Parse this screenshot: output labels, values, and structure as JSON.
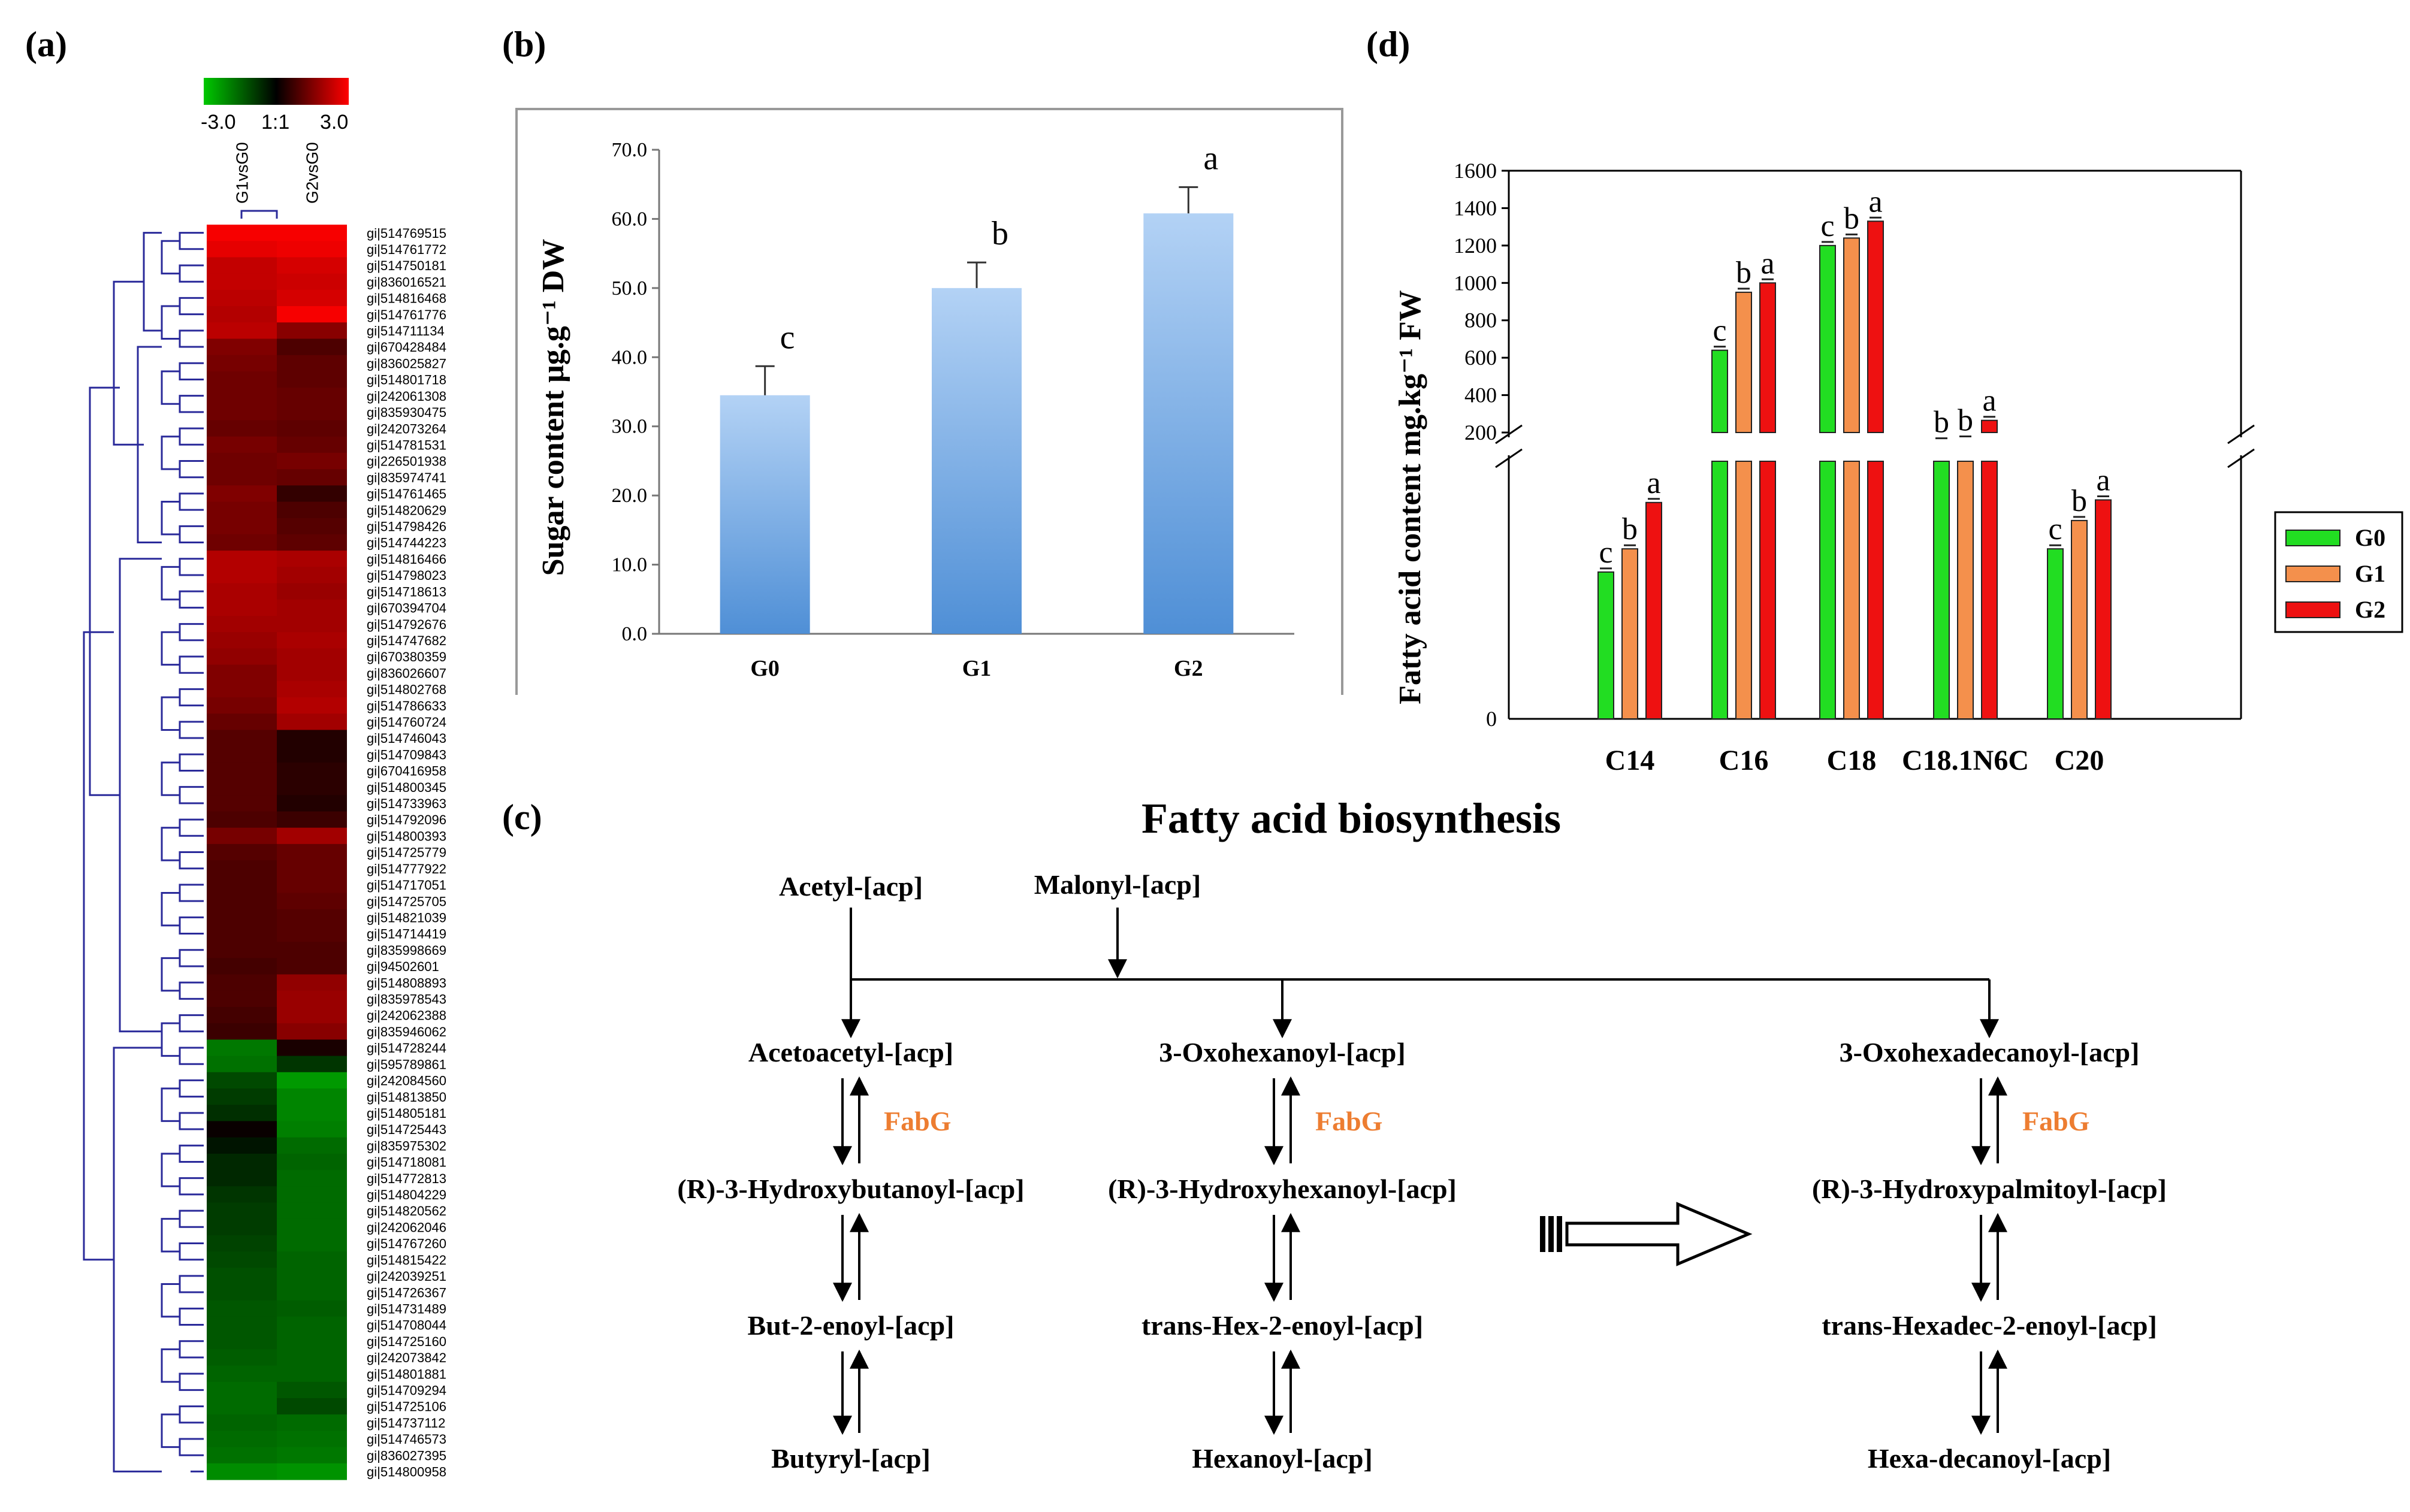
{
  "panel_labels": {
    "a": "(a)",
    "b": "(b)",
    "c": "(c)",
    "d": "(d)"
  },
  "heatmap": {
    "scale": {
      "min": "-3.0",
      "mid": "1:1",
      "max": "3.0"
    },
    "colors": {
      "low": "#00c800",
      "mid": "#000000",
      "high": "#ff0000"
    },
    "columns": [
      "G1vsG0",
      "G2vsG0"
    ],
    "genes": [
      "gi|514769515",
      "gi|514761772",
      "gi|514750181",
      "gi|836016521",
      "gi|514816468",
      "gi|514761776",
      "gi|514711134",
      "gi|670428484",
      "gi|836025827",
      "gi|514801718",
      "gi|242061308",
      "gi|835930475",
      "gi|242073264",
      "gi|514781531",
      "gi|226501938",
      "gi|835974741",
      "gi|514761465",
      "gi|514820629",
      "gi|514798426",
      "gi|514744223",
      "gi|514816466",
      "gi|514798023",
      "gi|514718613",
      "gi|670394704",
      "gi|514792676",
      "gi|514747682",
      "gi|670380359",
      "gi|836026607",
      "gi|514802768",
      "gi|514786633",
      "gi|514760724",
      "gi|514746043",
      "gi|514709843",
      "gi|670416958",
      "gi|514800345",
      "gi|514733963",
      "gi|514792096",
      "gi|514800393",
      "gi|514725779",
      "gi|514777922",
      "gi|514717051",
      "gi|514725705",
      "gi|514821039",
      "gi|514714419",
      "gi|835998669",
      "gi|94502601",
      "gi|514808893",
      "gi|835978543",
      "gi|242062388",
      "gi|835946062",
      "gi|514728244",
      "gi|595789861",
      "gi|242084560",
      "gi|514813850",
      "gi|514805181",
      "gi|514725443",
      "gi|835975302",
      "gi|514718081",
      "gi|514772813",
      "gi|514804229",
      "gi|514820562",
      "gi|242062046",
      "gi|514767260",
      "gi|514815422",
      "gi|242039251",
      "gi|514726367",
      "gi|514731489",
      "gi|514708044",
      "gi|514725160",
      "gi|242073842",
      "gi|514801881",
      "gi|514709294",
      "gi|514725106",
      "gi|514737112",
      "gi|514746573",
      "gi|836027395",
      "gi|514800958"
    ],
    "values": [
      [
        2.9,
        2.9
      ],
      [
        2.7,
        2.8
      ],
      [
        2.3,
        2.5
      ],
      [
        2.3,
        2.4
      ],
      [
        2.2,
        2.5
      ],
      [
        2.1,
        2.9
      ],
      [
        2.2,
        1.6
      ],
      [
        1.5,
        0.9
      ],
      [
        1.4,
        1.1
      ],
      [
        1.3,
        1.1
      ],
      [
        1.3,
        1.2
      ],
      [
        1.3,
        1.2
      ],
      [
        1.2,
        1.1
      ],
      [
        1.4,
        1.2
      ],
      [
        1.3,
        1.4
      ],
      [
        1.3,
        1.2
      ],
      [
        1.5,
        0.6
      ],
      [
        1.4,
        0.9
      ],
      [
        1.4,
        1.0
      ],
      [
        1.3,
        1.1
      ],
      [
        2.1,
        2.0
      ],
      [
        2.1,
        1.9
      ],
      [
        2.0,
        1.8
      ],
      [
        2.0,
        1.9
      ],
      [
        1.9,
        1.9
      ],
      [
        1.8,
        2.0
      ],
      [
        1.7,
        1.9
      ],
      [
        1.5,
        1.9
      ],
      [
        1.5,
        2.0
      ],
      [
        1.4,
        2.1
      ],
      [
        1.2,
        1.9
      ],
      [
        1.0,
        0.4
      ],
      [
        1.0,
        0.4
      ],
      [
        1.0,
        0.5
      ],
      [
        1.0,
        0.5
      ],
      [
        1.0,
        0.4
      ],
      [
        0.9,
        0.7
      ],
      [
        1.4,
        1.9
      ],
      [
        1.0,
        1.2
      ],
      [
        0.9,
        1.2
      ],
      [
        0.9,
        1.2
      ],
      [
        0.9,
        1.1
      ],
      [
        0.9,
        1.0
      ],
      [
        0.9,
        1.0
      ],
      [
        0.9,
        0.9
      ],
      [
        0.8,
        0.9
      ],
      [
        0.9,
        1.7
      ],
      [
        0.9,
        1.8
      ],
      [
        0.8,
        1.8
      ],
      [
        0.7,
        1.6
      ],
      [
        -1.8,
        0.3
      ],
      [
        -1.7,
        -0.8
      ],
      [
        -1.1,
        -2.3
      ],
      [
        -0.9,
        -2.0
      ],
      [
        -0.7,
        -2.0
      ],
      [
        0.1,
        -1.9
      ],
      [
        -0.3,
        -1.6
      ],
      [
        -0.6,
        -1.5
      ],
      [
        -0.6,
        -1.6
      ],
      [
        -0.8,
        -1.6
      ],
      [
        -0.9,
        -1.6
      ],
      [
        -0.9,
        -1.6
      ],
      [
        -1.0,
        -1.6
      ],
      [
        -1.1,
        -1.5
      ],
      [
        -1.2,
        -1.5
      ],
      [
        -1.2,
        -1.5
      ],
      [
        -1.3,
        -1.4
      ],
      [
        -1.3,
        -1.5
      ],
      [
        -1.3,
        -1.5
      ],
      [
        -1.4,
        -1.5
      ],
      [
        -1.5,
        -1.5
      ],
      [
        -1.6,
        -1.3
      ],
      [
        -1.6,
        -1.1
      ],
      [
        -1.5,
        -1.6
      ],
      [
        -1.6,
        -1.7
      ],
      [
        -1.7,
        -1.8
      ],
      [
        -2.1,
        -2.2
      ]
    ]
  },
  "chart_b": {
    "chart_data": {
      "type": "bar",
      "categories": [
        "G0",
        "G1",
        "G2"
      ],
      "values": [
        34.5,
        50.0,
        60.8
      ],
      "errors": [
        4.2,
        3.7,
        3.8
      ],
      "letters": [
        "c",
        "b",
        "a"
      ],
      "ylabel": "Sugar content μg.g⁻¹ DW",
      "ylim": [
        0,
        70
      ],
      "yticks": [
        "0.0",
        "10.0",
        "20.0",
        "30.0",
        "40.0",
        "50.0",
        "60.0",
        "70.0"
      ],
      "grid": false
    },
    "colors": {
      "bar_top": "#b3d2f5",
      "bar_bottom": "#4f8fd6"
    }
  },
  "chart_d": {
    "chart_data": {
      "type": "bar",
      "categories": [
        "C14",
        "C16",
        "C18",
        "C18.1N6C",
        "C20"
      ],
      "series": [
        {
          "name": "G0",
          "values": [
            null,
            640,
            1200,
            150,
            null
          ],
          "color": "#22dd22"
        },
        {
          "name": "G1",
          "values": [
            null,
            950,
            1240,
            160,
            null
          ],
          "color": "#f4904c"
        },
        {
          "name": "G2",
          "values": [
            null,
            1000,
            1330,
            265,
            null
          ],
          "color": "#ee1111"
        }
      ],
      "series_relative_height_below_break": {
        "C14": [
          0.57,
          0.66,
          0.84
        ],
        "C20": [
          0.66,
          0.77,
          0.85
        ]
      },
      "letters": {
        "C14": [
          "c",
          "b",
          "a"
        ],
        "C16": [
          "c",
          "b",
          "a"
        ],
        "C18": [
          "c",
          "b",
          "a"
        ],
        "C18.1N6C": [
          "b",
          "b",
          "a"
        ],
        "C20": [
          "c",
          "b",
          "a"
        ]
      },
      "ylabel": "Fatty acid content mg.kg⁻¹ FW",
      "upper_ylim": [
        200,
        1600
      ],
      "yticks_upper": [
        "200",
        "400",
        "600",
        "800",
        "1000",
        "1200",
        "1400",
        "1600"
      ],
      "ytick_bottom": "0",
      "axis_break": true,
      "legend_position": "right"
    }
  },
  "pathway": {
    "title": "Fatty acid biosynthesis",
    "start_nodes": [
      "Acetyl-[acp]",
      "Malonyl-[acp]"
    ],
    "enzyme": "FabG",
    "enzyme_color": "#ed7d31",
    "columns": [
      [
        "Acetoacetyl-[acp]",
        "(R)-3-Hydroxybutanoyl-[acp]",
        "But-2-enoyl-[acp]",
        "Butyryl-[acp]"
      ],
      [
        "3-Oxohexanoyl-[acp]",
        "(R)-3-Hydroxyhexanoyl-[acp]",
        "trans-Hex-2-enoyl-[acp]",
        "Hexanoyl-[acp]"
      ],
      [
        "3-Oxohexadecanoyl-[acp]",
        "(R)-3-Hydroxypalmitoyl-[acp]",
        "trans-Hexadec-2-enoyl-[acp]",
        "Hexa-decanoyl-[acp]"
      ]
    ]
  }
}
